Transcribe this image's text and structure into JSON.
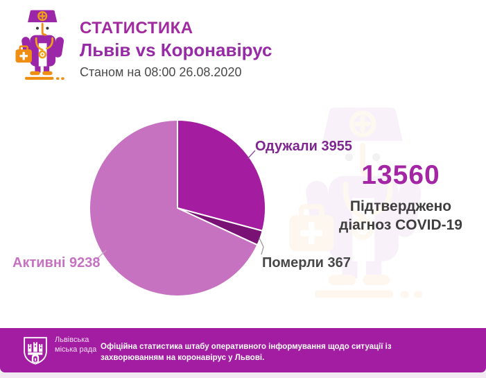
{
  "header": {
    "title": "СТАТИСТИКА",
    "subtitle": "Львів vs Коронавірус",
    "as_of": "Станом на 08:00 26.08.2020"
  },
  "chart_data": {
    "type": "pie",
    "total": 13560,
    "start_angle_deg": 0,
    "direction": "clockwise",
    "slices": [
      {
        "key": "recovered",
        "name": "Одужали",
        "value": 3955,
        "color": "#a41da0"
      },
      {
        "key": "died",
        "name": "Померли",
        "value": 367,
        "color": "#7a1174"
      },
      {
        "key": "active",
        "name": "Активні",
        "value": 9238,
        "color": "#c672c1"
      }
    ],
    "labels": {
      "recovered": "Одужали 3955",
      "died": "Померли 367",
      "active": "Активні 9238"
    },
    "legend_position": "none",
    "grid": false
  },
  "summary": {
    "number": "13560",
    "caption": "Підтверджено діагноз COVID-19"
  },
  "footer": {
    "org_name": "Львівська міська рада",
    "statement": "Офіційна статистика штабу оперативного інформування щодо ситуації із захворюванням на коронавірус у Львові."
  },
  "icons": {
    "doctor": "doctor-with-medical-bag-icon",
    "watermark": "doctor-watermark-icon",
    "emblem": "lviv-city-council-emblem-icon"
  },
  "colors": {
    "accent_magenta": "#a22aa0",
    "accent_purple": "#962ba5",
    "number_magenta": "#a426a4",
    "footer_bar": "#a31da3",
    "text_dark": "#4a4a4a",
    "label_recovered": "#7e2590",
    "label_active": "#c672c1",
    "label_died": "#474747",
    "icon_purple": "#9b27a8",
    "icon_orange": "#ef8e12"
  }
}
